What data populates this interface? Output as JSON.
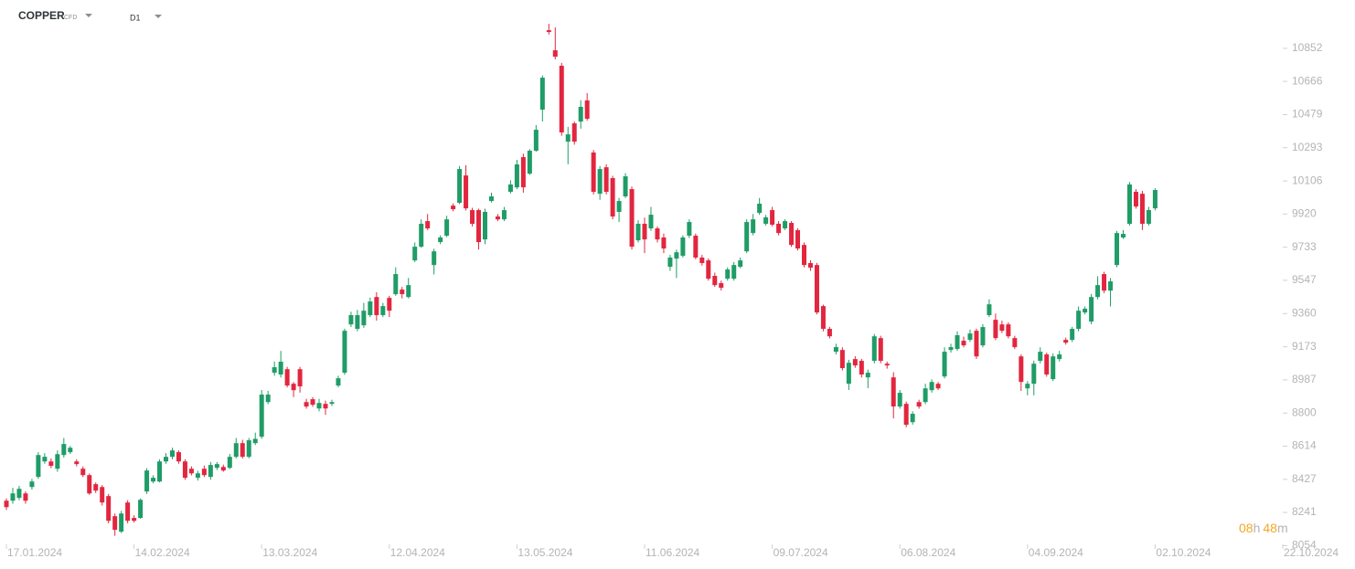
{
  "header": {
    "symbol": "COPPER",
    "instrument": "CFD",
    "timeframe": "D1"
  },
  "countdown": {
    "hours": "08",
    "hours_unit": "h",
    "minutes": "48",
    "minutes_unit": "m"
  },
  "chart_data": {
    "type": "candlestick",
    "up_color": "#1f9c67",
    "down_color": "#e2263f",
    "ylim": [
      8041,
      11124
    ],
    "yticks": [
      8054,
      8241,
      8427,
      8614,
      8800,
      8987,
      9173,
      9360,
      9547,
      9733,
      9920,
      10106,
      10293,
      10479,
      10666,
      10852
    ],
    "categories": [
      "17.01.2024",
      null,
      null,
      null,
      null,
      null,
      null,
      null,
      null,
      null,
      null,
      null,
      null,
      null,
      null,
      null,
      null,
      null,
      null,
      null,
      "14.02.2024",
      null,
      null,
      null,
      null,
      null,
      null,
      null,
      null,
      null,
      null,
      null,
      null,
      null,
      null,
      null,
      null,
      null,
      null,
      null,
      "13.03.2024",
      null,
      null,
      null,
      null,
      null,
      null,
      null,
      null,
      null,
      null,
      null,
      null,
      null,
      null,
      null,
      null,
      null,
      null,
      null,
      "12.04.2024",
      null,
      null,
      null,
      null,
      null,
      null,
      null,
      null,
      null,
      null,
      null,
      null,
      null,
      null,
      null,
      null,
      null,
      null,
      null,
      "13.05.2024",
      null,
      null,
      null,
      null,
      null,
      null,
      null,
      null,
      null,
      null,
      null,
      null,
      null,
      null,
      null,
      null,
      null,
      null,
      null,
      "11.06.2024",
      null,
      null,
      null,
      null,
      null,
      null,
      null,
      null,
      null,
      null,
      null,
      null,
      null,
      null,
      null,
      null,
      null,
      null,
      null,
      "09.07.2024",
      null,
      null,
      null,
      null,
      null,
      null,
      null,
      null,
      null,
      null,
      null,
      null,
      null,
      null,
      null,
      null,
      null,
      null,
      null,
      "06.08.2024",
      null,
      null,
      null,
      null,
      null,
      null,
      null,
      null,
      null,
      null,
      null,
      null,
      null,
      null,
      null,
      null,
      null,
      null,
      null,
      "04.09.2024",
      null,
      null,
      null,
      null,
      null,
      null,
      null,
      null,
      null,
      null,
      null,
      null,
      null,
      null,
      null,
      null,
      null,
      null,
      null,
      "02.10.2024",
      null,
      null,
      null,
      null,
      null,
      null,
      null,
      null,
      null,
      null,
      null,
      null,
      null,
      null,
      null,
      null,
      null,
      null,
      null,
      "22.10.2024"
    ],
    "open": [
      8307,
      8307,
      8323,
      8348,
      8384,
      8441,
      8528,
      8528,
      8487,
      8564,
      8580,
      8528,
      8487,
      8451,
      8400,
      8384,
      8333,
      8220,
      8133,
      8297,
      8210,
      8210,
      8359,
      8415,
      8415,
      8528,
      8554,
      8580,
      8528,
      8487,
      8436,
      8487,
      8441,
      8492,
      8497,
      8492,
      8554,
      8631,
      8554,
      8631,
      8667,
      8862,
      9027,
      9017,
      9047,
      8965,
      9047,
      8862,
      8878,
      8826,
      8852,
      8852,
      8955,
      9027,
      9299,
      9274,
      9294,
      9351,
      9453,
      9351,
      9448,
      9469,
      9495,
      9453,
      9659,
      9736,
      9880,
      9633,
      9762,
      9798,
      9967,
      9983,
      10137,
      9942,
      9942,
      9777,
      9993,
      9906,
      9890,
      10045,
      10070,
      10240,
      10147,
      10276,
      10507,
      10954,
      10841,
      10754,
      10327,
      10430,
      10440,
      10559,
      10266,
      10034,
      10183,
      10122,
      9932,
      10019,
      10060,
      9772,
      9865,
      9839,
      9839,
      9788,
      9623,
      9669,
      9685,
      9798,
      9798,
      9675,
      9659,
      9572,
      9531,
      9556,
      9556,
      9623,
      9710,
      9813,
      9926,
      9865,
      9942,
      9865,
      9839,
      9870,
      9829,
      9746,
      9644,
      9633,
      9402,
      9274,
      9145,
      9155,
      8965,
      9104,
      9094,
      9001,
      9094,
      9222,
      9078,
      9001,
      8837,
      8852,
      8749,
      8862,
      8862,
      8929,
      8965,
      9006,
      9155,
      9161,
      9207,
      9212,
      9263,
      9181,
      9351,
      9325,
      9299,
      9299,
      9222,
      9119,
      8939,
      8965,
      9094,
      9130,
      8991,
      9104,
      9212,
      9212,
      9274,
      9366,
      9315,
      9453,
      9582,
      9489,
      9633,
      9788,
      9865,
      10045,
      10034,
      9865,
      9952,
      null,
      null,
      null,
      null,
      null,
      null,
      null,
      null,
      null,
      null,
      null,
      null,
      null,
      null,
      null,
      null,
      null,
      null,
      null,
      null
    ],
    "high": [
      8320,
      8380,
      8390,
      8360,
      8430,
      8580,
      8575,
      8545,
      8590,
      8660,
      8615,
      8540,
      8500,
      8460,
      8410,
      8395,
      8345,
      8235,
      8250,
      8310,
      8225,
      8320,
      8490,
      8450,
      8540,
      8575,
      8605,
      8590,
      8540,
      8500,
      8475,
      8505,
      8525,
      8525,
      8510,
      8570,
      8660,
      8650,
      8660,
      8690,
      8930,
      8925,
      9090,
      9150,
      9060,
      8975,
      9060,
      8880,
      8890,
      8880,
      8870,
      8875,
      9010,
      9275,
      9370,
      9380,
      9420,
      9450,
      9480,
      9420,
      9460,
      9620,
      9510,
      9560,
      9760,
      9890,
      9920,
      9725,
      9800,
      9910,
      9980,
      10190,
      10195,
      9955,
      9950,
      9950,
      10040,
      9920,
      9960,
      10110,
      10225,
      10260,
      10285,
      10420,
      10700,
      10990,
      10970,
      10770,
      10410,
      10440,
      10560,
      10600,
      10280,
      10190,
      10200,
      10135,
      10010,
      10150,
      10075,
      9885,
      9900,
      9960,
      9850,
      9810,
      9690,
      9720,
      9800,
      9890,
      9810,
      9690,
      9670,
      9590,
      9545,
      9620,
      9650,
      9675,
      9890,
      9920,
      10010,
      9915,
      9960,
      9880,
      9890,
      9880,
      9840,
      9760,
      9660,
      9645,
      9410,
      9285,
      9190,
      9170,
      9100,
      9120,
      9105,
      9045,
      9245,
      9235,
      9090,
      9030,
      8930,
      8865,
      8810,
      8875,
      8965,
      8990,
      8975,
      9170,
      9190,
      9260,
      9230,
      9270,
      9275,
      9300,
      9440,
      9360,
      9320,
      9310,
      9235,
      9130,
      8980,
      9095,
      9170,
      9140,
      9135,
      9150,
      9225,
      9285,
      9400,
      9400,
      9470,
      9570,
      9595,
      9560,
      9825,
      9830,
      10100,
      10060,
      10050,
      9960,
      10065,
      null,
      null,
      null,
      null,
      null,
      null,
      null,
      null,
      null,
      null,
      null,
      null,
      null,
      null,
      null,
      null,
      null,
      null,
      null,
      null
    ],
    "low": [
      8255,
      8290,
      8310,
      8290,
      8370,
      8430,
      8515,
      8490,
      8470,
      8550,
      8570,
      8500,
      8440,
      8340,
      8350,
      8280,
      8180,
      8110,
      8125,
      8180,
      8185,
      8205,
      8345,
      8405,
      8410,
      8515,
      8540,
      8515,
      8425,
      8450,
      8420,
      8440,
      8425,
      8480,
      8470,
      8485,
      8545,
      8545,
      8545,
      8620,
      8655,
      8850,
      9010,
      9000,
      8945,
      8890,
      8915,
      8825,
      8835,
      8810,
      8790,
      8840,
      8945,
      9015,
      9285,
      9260,
      9280,
      9340,
      9320,
      9340,
      9340,
      9460,
      9445,
      9445,
      9650,
      9730,
      9830,
      9580,
      9750,
      9790,
      9935,
      9975,
      9940,
      9850,
      9720,
      9750,
      9985,
      9880,
      9880,
      10035,
      10060,
      10040,
      10140,
      10270,
      10440,
      10930,
      10790,
      10360,
      10200,
      10310,
      10400,
      10445,
      10030,
      10000,
      10030,
      9890,
      9875,
      10010,
      9720,
      9760,
      9700,
      9825,
      9760,
      9700,
      9600,
      9560,
      9675,
      9785,
      9665,
      9630,
      9545,
      9510,
      9490,
      9545,
      9545,
      9615,
      9700,
      9800,
      9915,
      9855,
      9850,
      9800,
      9830,
      9735,
      9715,
      9620,
      9600,
      9355,
      9260,
      9220,
      9130,
      9040,
      8930,
      9055,
      9000,
      8940,
      9080,
      9080,
      9050,
      8770,
      8825,
      8720,
      8735,
      8825,
      8850,
      8915,
      8930,
      8995,
      9140,
      9150,
      9170,
      9200,
      9105,
      9170,
      9340,
      9210,
      9250,
      9220,
      9160,
      8925,
      8900,
      8900,
      9080,
      9005,
      8980,
      9090,
      9185,
      9200,
      9260,
      9355,
      9300,
      9440,
      9475,
      9400,
      9620,
      9780,
      9855,
      9950,
      9830,
      9855,
      9940,
      null,
      null,
      null,
      null,
      null,
      null,
      null,
      null,
      null,
      null,
      null,
      null,
      null,
      null,
      null,
      null,
      null,
      null,
      null,
      null
    ],
    "close": [
      8271,
      8348,
      8374,
      8307,
      8415,
      8564,
      8554,
      8503,
      8569,
      8626,
      8605,
      8513,
      8451,
      8348,
      8364,
      8297,
      8194,
      8143,
      8235,
      8194,
      8194,
      8312,
      8477,
      8436,
      8528,
      8554,
      8590,
      8528,
      8436,
      8461,
      8461,
      8451,
      8508,
      8513,
      8477,
      8554,
      8631,
      8554,
      8647,
      8655,
      8904,
      8904,
      9058,
      9089,
      8955,
      8929,
      8950,
      8837,
      8847,
      8857,
      8826,
      8862,
      8996,
      9263,
      9351,
      9351,
      9376,
      9428,
      9351,
      9402,
      9376,
      9582,
      9469,
      9520,
      9736,
      9865,
      9839,
      9710,
      9788,
      9890,
      9947,
      10173,
      9952,
      9865,
      9762,
      9932,
      10019,
      9890,
      9942,
      10086,
      10199,
      10070,
      10276,
      10394,
      10687,
      10944,
      10805,
      10379,
      10368,
      10327,
      10523,
      10456,
      10045,
      10173,
      10045,
      9906,
      9993,
      10132,
      9736,
      9865,
      9777,
      9916,
      9777,
      9726,
      9675,
      9705,
      9788,
      9875,
      9675,
      9644,
      9556,
      9520,
      9505,
      9608,
      9633,
      9659,
      9875,
      9890,
      9978,
      9901,
      9860,
      9813,
      9880,
      9746,
      9726,
      9633,
      9618,
      9366,
      9274,
      9232,
      9171,
      9053,
      9083,
      9068,
      9017,
      9027,
      9232,
      9094,
      9068,
      8837,
      8914,
      8734,
      8796,
      8837,
      8939,
      8975,
      8939,
      9145,
      9171,
      9238,
      9181,
      9248,
      9119,
      9284,
      9412,
      9222,
      9263,
      9232,
      9171,
      8975,
      8965,
      9078,
      9145,
      9017,
      9119,
      9130,
      9196,
      9274,
      9376,
      9387,
      9453,
      9520,
      9489,
      9541,
      9813,
      9808,
      10086,
      9962,
      9865,
      9942,
      10055,
      null,
      null,
      null,
      null,
      null,
      null,
      null,
      null,
      null,
      null,
      null,
      null,
      null,
      null,
      null,
      null,
      null,
      null,
      null,
      null
    ]
  }
}
